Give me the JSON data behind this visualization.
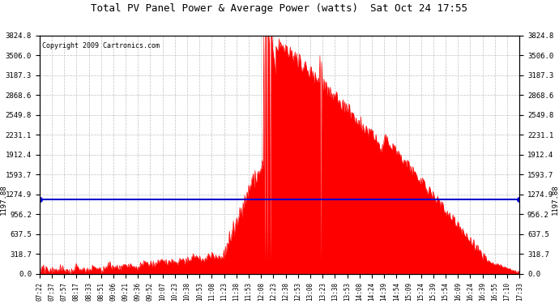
{
  "title": "Total PV Panel Power & Average Power (watts)  Sat Oct 24 17:55",
  "copyright": "Copyright 2009 Cartronics.com",
  "avg_power": 1197.88,
  "y_max": 3824.8,
  "y_min": 0.0,
  "y_ticks": [
    0.0,
    318.7,
    637.5,
    956.2,
    1274.9,
    1593.7,
    1912.4,
    2231.1,
    2549.8,
    2868.6,
    3187.3,
    3506.0,
    3824.8
  ],
  "bar_color": "#ff0000",
  "avg_line_color": "#0000cc",
  "background_color": "#ffffff",
  "grid_color": "#c0c0c0",
  "x_labels": [
    "07:22",
    "07:37",
    "07:57",
    "08:17",
    "08:33",
    "08:51",
    "09:06",
    "09:21",
    "09:36",
    "09:52",
    "10:07",
    "10:23",
    "10:38",
    "10:53",
    "11:08",
    "11:23",
    "11:38",
    "11:53",
    "12:08",
    "12:23",
    "12:38",
    "12:53",
    "13:08",
    "13:23",
    "13:38",
    "13:53",
    "14:08",
    "14:24",
    "14:39",
    "14:54",
    "15:09",
    "15:24",
    "15:39",
    "15:54",
    "16:09",
    "16:24",
    "16:39",
    "16:55",
    "17:10",
    "17:33"
  ],
  "n_points": 600,
  "fig_width": 6.9,
  "fig_height": 3.75,
  "dpi": 100
}
